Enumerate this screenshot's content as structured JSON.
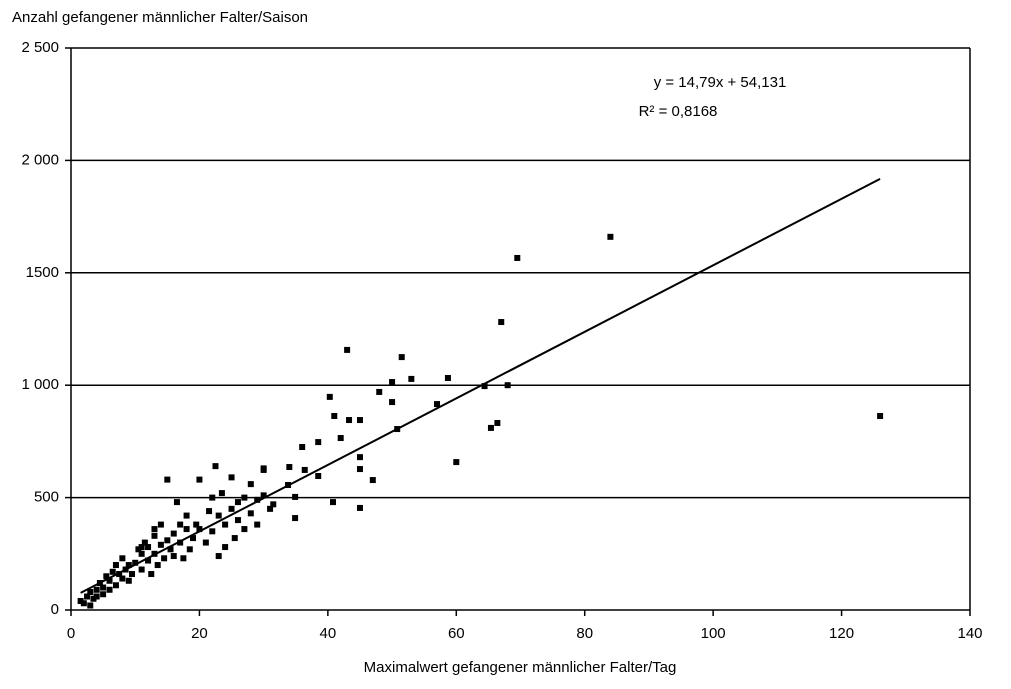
{
  "chart_data": {
    "type": "scatter",
    "y_label": "Anzahl gefangener männlicher Falter/Saison",
    "x_label": "Maximalwert gefangener männlicher Falter/Tag",
    "annotations": [
      "y = 14,79x + 54,131",
      "R² = 0,8168"
    ],
    "color": "#000000",
    "xlim": [
      0,
      140
    ],
    "xticks": [
      0,
      20,
      40,
      60,
      80,
      100,
      120,
      140
    ],
    "ylim": [
      0,
      2500
    ],
    "yticks": [
      0,
      500,
      {
        "value": 1000,
        "label": "1 000"
      },
      1500,
      {
        "value": 2000,
        "label": "2 000"
      },
      {
        "value": 2500,
        "label": "2 500"
      }
    ],
    "grid": true,
    "x": [
      84,
      69.5,
      67,
      43,
      51.5,
      126,
      58.7,
      53,
      50,
      48,
      64.4,
      68,
      57,
      50,
      40.3,
      41,
      45,
      43.3,
      42,
      50.8,
      66.4,
      65.4,
      38.5,
      36,
      60,
      45,
      45,
      47,
      45,
      40.8,
      34,
      36.4,
      38.5,
      34.9,
      30,
      33.8,
      34.9,
      1.5,
      2,
      2.5,
      3,
      3,
      3.5,
      4,
      4,
      4.5,
      5,
      5,
      5.5,
      6,
      6,
      6.5,
      7,
      7,
      7.5,
      8,
      8,
      8.5,
      9,
      9,
      9.5,
      10,
      10.5,
      11,
      11,
      11.5,
      12,
      12,
      12.5,
      13,
      13,
      13.5,
      14,
      14,
      14.5,
      15,
      15,
      15.5,
      16,
      16,
      16.5,
      17,
      17,
      17.5,
      18,
      18,
      18.5,
      19,
      19.5,
      20,
      20,
      21,
      21.5,
      22,
      22,
      22.5,
      23,
      23,
      23.5,
      24,
      24,
      25,
      25,
      25.5,
      26,
      26,
      27,
      27,
      28,
      28,
      29,
      29,
      30,
      30,
      31,
      31.5,
      11,
      13
    ],
    "values": [
      1660,
      1566,
      1281,
      1157,
      1125,
      863,
      1032,
      1028,
      1014,
      970,
      996,
      1000,
      916,
      925,
      948,
      863,
      845,
      845,
      765,
      805,
      832,
      810,
      747,
      725,
      658,
      680,
      627,
      578,
      454,
      480,
      636,
      623,
      596,
      503,
      623,
      556,
      409,
      40,
      30,
      60,
      20,
      80,
      50,
      90,
      60,
      120,
      100,
      70,
      150,
      130,
      90,
      170,
      110,
      200,
      160,
      140,
      230,
      180,
      130,
      200,
      160,
      210,
      270,
      180,
      250,
      300,
      220,
      280,
      160,
      250,
      330,
      200,
      290,
      380,
      230,
      580,
      310,
      270,
      340,
      240,
      480,
      300,
      380,
      230,
      360,
      420,
      270,
      320,
      380,
      580,
      360,
      300,
      440,
      500,
      350,
      640,
      240,
      420,
      520,
      380,
      280,
      450,
      590,
      320,
      480,
      400,
      500,
      360,
      430,
      560,
      490,
      380,
      630,
      510,
      450,
      470,
      280,
      360
    ],
    "trendline": {
      "x": [
        1.5,
        126
      ],
      "values": [
        76,
        1918
      ]
    }
  }
}
